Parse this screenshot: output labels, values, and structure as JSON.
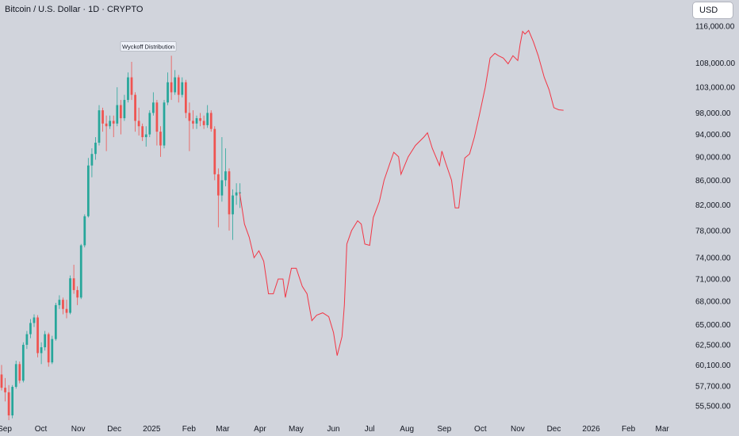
{
  "header": {
    "symbol_title": "Bitcoin / U.S. Dollar · 1D · CRYPTO"
  },
  "currency_button": {
    "label": "USD"
  },
  "chart_data": {
    "type": "line",
    "title": "Bitcoin / U.S. Dollar · 1D · CRYPTO",
    "currency": "USD",
    "y_scale": "log",
    "x_tick_labels": [
      "Sep",
      "Oct",
      "Nov",
      "Dec",
      "2025",
      "Feb",
      "Mar",
      "Apr",
      "May",
      "Jun",
      "Jul",
      "Aug",
      "Sep",
      "Oct",
      "Nov",
      "Dec",
      "2026",
      "Feb",
      "Mar"
    ],
    "y_tick_labels": [
      {
        "label": "116,000.00",
        "value": 116000
      },
      {
        "label": "108,000.00",
        "value": 108000
      },
      {
        "label": "103,000.00",
        "value": 103000
      },
      {
        "label": "98,000.00",
        "value": 98000
      },
      {
        "label": "94,000.00",
        "value": 94000
      },
      {
        "label": "90,000.00",
        "value": 90000
      },
      {
        "label": "86,000.00",
        "value": 86000
      },
      {
        "label": "82,000.00",
        "value": 82000
      },
      {
        "label": "78,000.00",
        "value": 78000
      },
      {
        "label": "74,000.00",
        "value": 74000
      },
      {
        "label": "71,000.00",
        "value": 71000
      },
      {
        "label": "68,000.00",
        "value": 68000
      },
      {
        "label": "65,000.00",
        "value": 65000
      },
      {
        "label": "62,500.00",
        "value": 62500
      },
      {
        "label": "60,100.00",
        "value": 60100
      },
      {
        "label": "57,700.00",
        "value": 57700
      },
      {
        "label": "55,500.00",
        "value": 55500
      }
    ],
    "annotation": {
      "text": "Wyckoff Distribution",
      "date": "2024-12-20",
      "price": 111500
    },
    "ylim": [
      54000,
      122000
    ],
    "xlim": [
      "2024-09-01",
      "2026-03-20"
    ],
    "colors": {
      "up": "#26a69a",
      "down": "#ef5350",
      "projection": "#f23645",
      "background": "#d1d4dc"
    },
    "series": [
      {
        "type": "candlestick",
        "points": [
          [
            "2024-09-01",
            59000,
            60100,
            57200,
            57500
          ],
          [
            "2024-09-04",
            57500,
            58600,
            56000,
            57000
          ],
          [
            "2024-09-07",
            57000,
            57800,
            54000,
            54500
          ],
          [
            "2024-09-10",
            54500,
            57800,
            54200,
            57600
          ],
          [
            "2024-09-13",
            57600,
            60600,
            57400,
            60200
          ],
          [
            "2024-09-16",
            60200,
            60500,
            58000,
            58300
          ],
          [
            "2024-09-19",
            58300,
            62800,
            58100,
            62500
          ],
          [
            "2024-09-22",
            62500,
            64200,
            62000,
            63800
          ],
          [
            "2024-09-25",
            63800,
            65700,
            63300,
            65200
          ],
          [
            "2024-09-28",
            65200,
            66300,
            64700,
            65900
          ],
          [
            "2024-10-01",
            65900,
            66200,
            61000,
            61500
          ],
          [
            "2024-10-04",
            61500,
            62800,
            60200,
            62200
          ],
          [
            "2024-10-07",
            62200,
            64200,
            61800,
            63800
          ],
          [
            "2024-10-10",
            63800,
            64000,
            59900,
            60400
          ],
          [
            "2024-10-13",
            60400,
            63600,
            60200,
            63200
          ],
          [
            "2024-10-16",
            63200,
            67800,
            63000,
            67500
          ],
          [
            "2024-10-19",
            67500,
            68800,
            67000,
            68200
          ],
          [
            "2024-10-22",
            68200,
            68500,
            66300,
            67000
          ],
          [
            "2024-10-25",
            67000,
            68200,
            65800,
            66500
          ],
          [
            "2024-10-28",
            66500,
            71500,
            66300,
            71100
          ],
          [
            "2024-10-31",
            71100,
            73000,
            69000,
            69500
          ],
          [
            "2024-11-03",
            69500,
            70000,
            67500,
            68500
          ],
          [
            "2024-11-06",
            68500,
            76000,
            68300,
            75800
          ],
          [
            "2024-11-09",
            75800,
            80500,
            75500,
            80200
          ],
          [
            "2024-11-12",
            80200,
            89800,
            80000,
            88500
          ],
          [
            "2024-11-15",
            88500,
            91500,
            86500,
            90500
          ],
          [
            "2024-11-18",
            90500,
            93500,
            89500,
            92500
          ],
          [
            "2024-11-21",
            92500,
            99500,
            92000,
            98500
          ],
          [
            "2024-11-24",
            98500,
            99000,
            94500,
            96000
          ],
          [
            "2024-11-27",
            96000,
            97500,
            91000,
            95500
          ],
          [
            "2024-11-30",
            95500,
            97500,
            95000,
            96500
          ],
          [
            "2024-12-03",
            96500,
            97500,
            93500,
            96000
          ],
          [
            "2024-12-06",
            96000,
            103000,
            95500,
            99500
          ],
          [
            "2024-12-09",
            99500,
            100500,
            94000,
            97000
          ],
          [
            "2024-12-12",
            97000,
            101500,
            96500,
            100500
          ],
          [
            "2024-12-15",
            100500,
            106000,
            100000,
            105000
          ],
          [
            "2024-12-18",
            105000,
            108200,
            100500,
            101500
          ],
          [
            "2024-12-21",
            101500,
            102000,
            94500,
            96500
          ],
          [
            "2024-12-24",
            96500,
            99000,
            93800,
            95500
          ],
          [
            "2024-12-27",
            95500,
            96000,
            92800,
            93500
          ],
          [
            "2024-12-30",
            93500,
            95500,
            91800,
            94000
          ],
          [
            "2025-01-02",
            94000,
            98500,
            93500,
            98000
          ],
          [
            "2025-01-05",
            98000,
            102000,
            97500,
            100000
          ],
          [
            "2025-01-08",
            100000,
            100500,
            92000,
            94500
          ],
          [
            "2025-01-11",
            94500,
            95500,
            90000,
            92000
          ],
          [
            "2025-01-14",
            92000,
            100500,
            91500,
            100000
          ],
          [
            "2025-01-17",
            100000,
            106000,
            99500,
            104000
          ],
          [
            "2025-01-20",
            104000,
            109500,
            100500,
            102000
          ],
          [
            "2025-01-23",
            102000,
            106500,
            101500,
            105000
          ],
          [
            "2025-01-26",
            105000,
            105500,
            100000,
            101500
          ],
          [
            "2025-01-29",
            101500,
            105000,
            101000,
            104000
          ],
          [
            "2025-02-01",
            104000,
            104500,
            97000,
            98000
          ],
          [
            "2025-02-04",
            98000,
            100000,
            91000,
            96500
          ],
          [
            "2025-02-07",
            96500,
            98500,
            95000,
            96000
          ],
          [
            "2025-02-10",
            96000,
            97500,
            95000,
            97000
          ],
          [
            "2025-02-13",
            97000,
            98000,
            95500,
            96500
          ],
          [
            "2025-02-16",
            96500,
            97500,
            95000,
            95700
          ],
          [
            "2025-02-19",
            95700,
            99500,
            95200,
            98000
          ],
          [
            "2025-02-22",
            98000,
            98500,
            94500,
            95000
          ],
          [
            "2025-02-25",
            95000,
            95500,
            86000,
            87000
          ],
          [
            "2025-02-28",
            87000,
            88000,
            78500,
            83500
          ],
          [
            "2025-03-03",
            83500,
            93500,
            82500,
            86000
          ],
          [
            "2025-03-06",
            86000,
            91500,
            85000,
            87500
          ],
          [
            "2025-03-09",
            87500,
            88000,
            78000,
            80500
          ],
          [
            "2025-03-12",
            80500,
            84500,
            76600,
            83500
          ],
          [
            "2025-03-15",
            83500,
            85500,
            82000,
            84000
          ],
          [
            "2025-03-18",
            84000,
            85500,
            81500,
            84000
          ]
        ]
      },
      {
        "type": "line",
        "name": "",
        "points": [
          [
            "2025-03-19",
            84000
          ],
          [
            "2025-03-23",
            79000
          ],
          [
            "2025-03-27",
            77000
          ],
          [
            "2025-03-31",
            74000
          ],
          [
            "2025-04-04",
            75000
          ],
          [
            "2025-04-08",
            73500
          ],
          [
            "2025-04-12",
            69000
          ],
          [
            "2025-04-16",
            69000
          ],
          [
            "2025-04-20",
            71000
          ],
          [
            "2025-04-24",
            71000
          ],
          [
            "2025-04-26",
            68500
          ],
          [
            "2025-05-01",
            72500
          ],
          [
            "2025-05-05",
            72500
          ],
          [
            "2025-05-10",
            70000
          ],
          [
            "2025-05-14",
            69000
          ],
          [
            "2025-05-18",
            65500
          ],
          [
            "2025-05-22",
            66200
          ],
          [
            "2025-05-27",
            66500
          ],
          [
            "2025-06-01",
            66000
          ],
          [
            "2025-06-05",
            64000
          ],
          [
            "2025-06-08",
            61200
          ],
          [
            "2025-06-12",
            63500
          ],
          [
            "2025-06-14",
            67500
          ],
          [
            "2025-06-16",
            76000
          ],
          [
            "2025-06-20",
            78000
          ],
          [
            "2025-06-25",
            79500
          ],
          [
            "2025-06-28",
            79000
          ],
          [
            "2025-07-01",
            76000
          ],
          [
            "2025-07-05",
            75800
          ],
          [
            "2025-07-08",
            80000
          ],
          [
            "2025-07-13",
            82500
          ],
          [
            "2025-07-17",
            86000
          ],
          [
            "2025-07-22",
            89000
          ],
          [
            "2025-07-25",
            90800
          ],
          [
            "2025-07-29",
            90000
          ],
          [
            "2025-07-31",
            87000
          ],
          [
            "2025-08-06",
            90000
          ],
          [
            "2025-08-12",
            92000
          ],
          [
            "2025-08-19",
            93500
          ],
          [
            "2025-08-22",
            94300
          ],
          [
            "2025-08-26",
            91500
          ],
          [
            "2025-08-30",
            89500
          ],
          [
            "2025-09-01",
            88500
          ],
          [
            "2025-09-03",
            91000
          ],
          [
            "2025-09-06",
            89000
          ],
          [
            "2025-09-11",
            86000
          ],
          [
            "2025-09-14",
            81500
          ],
          [
            "2025-09-17",
            81500
          ],
          [
            "2025-09-19",
            85000
          ],
          [
            "2025-09-22",
            89800
          ],
          [
            "2025-09-26",
            90500
          ],
          [
            "2025-09-30",
            93500
          ],
          [
            "2025-10-04",
            97500
          ],
          [
            "2025-10-09",
            103000
          ],
          [
            "2025-10-13",
            109000
          ],
          [
            "2025-10-17",
            110000
          ],
          [
            "2025-10-20",
            109500
          ],
          [
            "2025-10-24",
            109000
          ],
          [
            "2025-10-28",
            107800
          ],
          [
            "2025-11-01",
            109500
          ],
          [
            "2025-11-05",
            108500
          ],
          [
            "2025-11-07",
            112000
          ],
          [
            "2025-11-09",
            114800
          ],
          [
            "2025-11-11",
            114200
          ],
          [
            "2025-11-14",
            115000
          ],
          [
            "2025-11-18",
            112500
          ],
          [
            "2025-11-22",
            109500
          ],
          [
            "2025-11-27",
            105000
          ],
          [
            "2025-12-01",
            102500
          ],
          [
            "2025-12-05",
            99000
          ],
          [
            "2025-12-09",
            98600
          ],
          [
            "2025-12-13",
            98500
          ]
        ]
      }
    ]
  }
}
